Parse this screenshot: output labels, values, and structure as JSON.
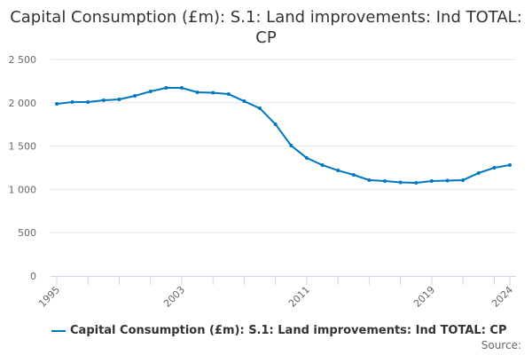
{
  "chart_data": {
    "type": "line",
    "title": "Capital Consumption (£m): S.1: Land improvements: Ind TOTAL: CP",
    "xlabel": "",
    "ylabel": "",
    "ylim": [
      0,
      2500
    ],
    "yticks": [
      "0",
      "500",
      "1 000",
      "1 500",
      "2 000",
      "2 500"
    ],
    "xtick_labels": [
      "1995",
      "2003",
      "2011",
      "2019",
      "2024"
    ],
    "x": [
      1995,
      1996,
      1997,
      1998,
      1999,
      2000,
      2001,
      2002,
      2003,
      2004,
      2005,
      2006,
      2007,
      2008,
      2009,
      2010,
      2011,
      2012,
      2013,
      2014,
      2015,
      2016,
      2017,
      2018,
      2019,
      2020,
      2021,
      2022,
      2023,
      2024
    ],
    "series": [
      {
        "name": "Capital Consumption (£m): S.1: Land improvements: Ind TOTAL: CP",
        "color": "#0078c0",
        "values": [
          1988,
          2008,
          2008,
          2029,
          2039,
          2080,
          2131,
          2172,
          2172,
          2121,
          2116,
          2100,
          2018,
          1936,
          1752,
          1506,
          1363,
          1281,
          1219,
          1168,
          1107,
          1096,
          1081,
          1076,
          1096,
          1101,
          1107,
          1189,
          1250,
          1281
        ]
      }
    ],
    "grid": true,
    "legend": "bottom"
  },
  "source_label": "Source:"
}
